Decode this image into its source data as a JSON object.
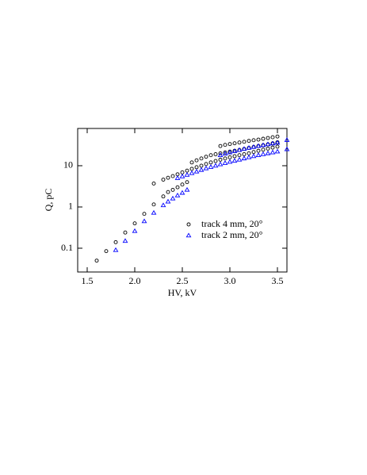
{
  "chart_data": {
    "type": "scatter",
    "xlabel": "HV, kV",
    "ylabel": "Q, pC",
    "xlim": [
      1.4,
      3.6
    ],
    "ylim": [
      0.0265,
      80
    ],
    "ylog": true,
    "xticks": [
      1.5,
      {
        "value": 2,
        "label": "2.0"
      },
      2.5,
      {
        "value": 3,
        "label": "3.0"
      },
      3.5
    ],
    "yticks": [
      0.1,
      1,
      10
    ],
    "legend": "lower right",
    "series": [
      {
        "name": "track 4 mm, 20°",
        "color": "#000000",
        "marker": "circle",
        "x": [
          1.6,
          1.7,
          1.8,
          1.9,
          2.0,
          2.1,
          2.2,
          2.3,
          2.35,
          2.4,
          2.45,
          2.5,
          2.55,
          2.2,
          2.3,
          2.35,
          2.4,
          2.45,
          2.5,
          2.55,
          2.6,
          2.65,
          2.7,
          2.75,
          2.8,
          2.85,
          2.9,
          2.95,
          3.0,
          3.05,
          3.1,
          3.15,
          3.2,
          3.25,
          3.3,
          3.35,
          3.4,
          3.45,
          3.5,
          2.6,
          2.65,
          2.7,
          2.75,
          2.8,
          2.85,
          2.9,
          2.95,
          3.0,
          3.05,
          3.1,
          3.15,
          3.2,
          3.25,
          3.3,
          3.35,
          3.4,
          3.45,
          3.5,
          2.9,
          2.95,
          3.0,
          3.05,
          3.1,
          3.15,
          3.2,
          3.25,
          3.3,
          3.35,
          3.4,
          3.45,
          3.5
        ],
        "values": [
          0.05,
          0.085,
          0.14,
          0.24,
          0.4,
          0.68,
          1.15,
          1.8,
          2.3,
          2.6,
          3.0,
          3.5,
          4.0,
          3.7,
          4.6,
          5.1,
          5.6,
          6.2,
          6.9,
          7.6,
          8.4,
          9.2,
          10,
          11,
          12,
          13,
          14,
          15,
          16,
          17,
          18,
          19,
          20,
          21.5,
          23,
          24.5,
          26,
          27.5,
          29,
          12,
          13.5,
          15,
          16.5,
          18,
          19,
          20,
          21,
          22,
          23,
          24,
          25.5,
          27,
          28.5,
          30,
          31.5,
          33,
          35,
          37,
          30,
          32,
          33.5,
          35,
          36.5,
          38,
          40,
          41.5,
          43,
          45,
          47,
          49,
          51
        ]
      },
      {
        "name": "track 2 mm, 20°",
        "color": "#0000ff",
        "marker": "triangle",
        "x": [
          1.8,
          1.9,
          2.0,
          2.1,
          2.2,
          2.3,
          2.35,
          2.4,
          2.45,
          2.5,
          2.55,
          2.45,
          2.5,
          2.55,
          2.6,
          2.65,
          2.7,
          2.75,
          2.8,
          2.85,
          2.9,
          2.95,
          3.0,
          3.05,
          3.1,
          3.15,
          3.2,
          3.25,
          3.3,
          3.35,
          3.4,
          3.45,
          3.5,
          3.6,
          2.9,
          2.95,
          3.0,
          3.05,
          3.1,
          3.15,
          3.2,
          3.25,
          3.3,
          3.35,
          3.4,
          3.45,
          3.5,
          3.6
        ],
        "values": [
          0.09,
          0.15,
          0.26,
          0.45,
          0.72,
          1.1,
          1.35,
          1.6,
          1.9,
          2.2,
          2.6,
          5,
          5.5,
          6,
          6.6,
          7.2,
          7.9,
          8.6,
          9.3,
          10,
          10.8,
          11.6,
          12.4,
          13.2,
          14,
          15,
          16,
          17,
          18,
          19,
          20,
          21,
          22,
          25,
          18,
          19.5,
          21,
          22.5,
          24,
          25.5,
          27,
          28.5,
          30,
          31.5,
          33,
          34.5,
          36,
          42
        ]
      }
    ]
  }
}
